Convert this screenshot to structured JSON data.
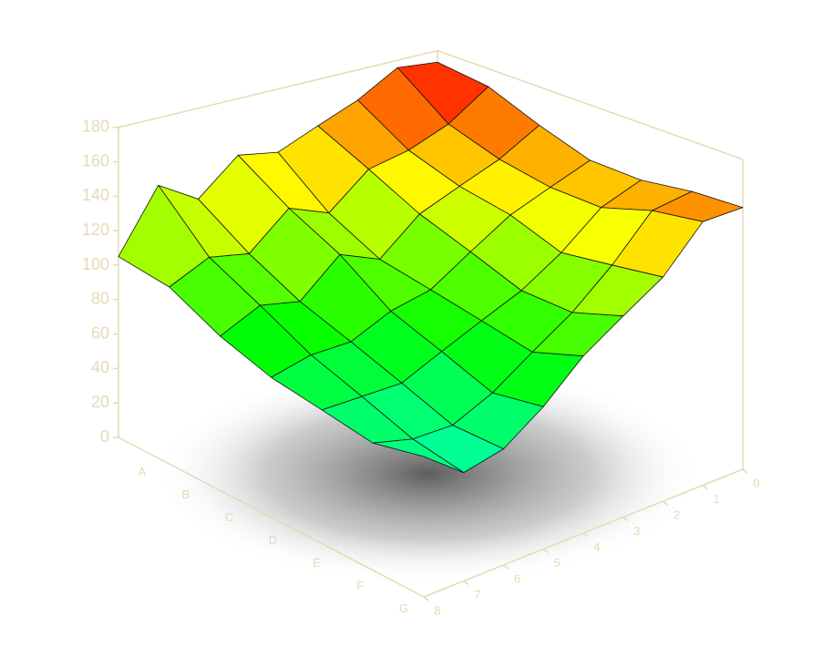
{
  "chart_data": {
    "type": "surface",
    "rows": [
      "A",
      "B",
      "C",
      "D",
      "E",
      "F",
      "G"
    ],
    "columns": [
      0,
      1,
      2,
      3,
      4,
      5,
      6,
      7,
      8
    ],
    "z": [
      [
        172,
        175,
        160,
        150,
        140,
        145,
        125,
        140,
        105
      ],
      [
        168,
        150,
        140,
        135,
        115,
        125,
        105,
        110,
        100
      ],
      [
        155,
        140,
        130,
        120,
        100,
        110,
        90,
        95,
        85
      ],
      [
        145,
        135,
        125,
        110,
        95,
        90,
        80,
        80,
        75
      ],
      [
        145,
        135,
        115,
        100,
        90,
        80,
        70,
        70,
        70
      ],
      [
        150,
        145,
        120,
        100,
        85,
        70,
        60,
        60,
        65
      ],
      [
        152,
        150,
        125,
        110,
        95,
        75,
        60,
        55,
        70
      ]
    ],
    "zlim": [
      0,
      180
    ],
    "zticks": [
      0,
      20,
      40,
      60,
      80,
      100,
      120,
      140,
      160,
      180
    ],
    "axis_color": "#e6dab4"
  }
}
